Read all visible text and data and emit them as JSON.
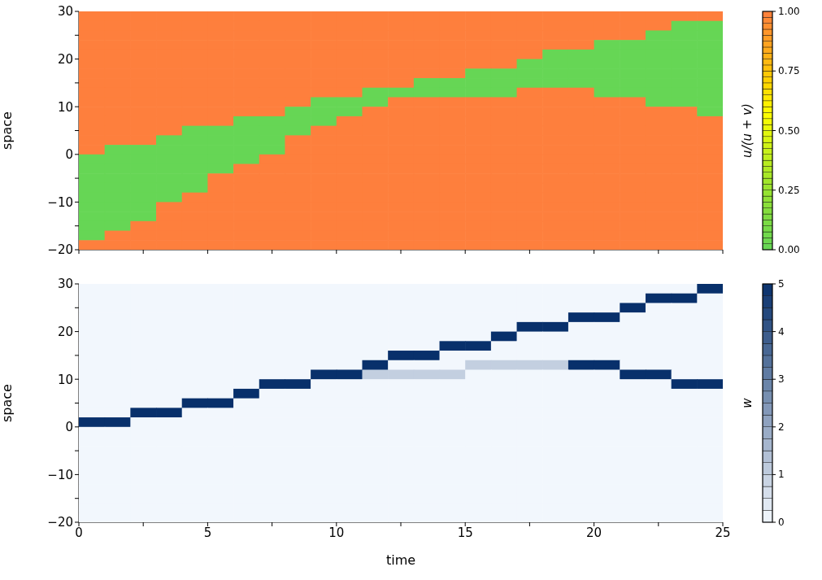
{
  "chart_data": [
    {
      "type": "heatmap",
      "ylabel": "space",
      "clabel": "u/(u + v)",
      "tick_labels": "y",
      "x": [
        0.5,
        1.5,
        2.5,
        3.5,
        4.5,
        5.5,
        6.5,
        7.5,
        8.5,
        9.5,
        10.5,
        11.5,
        12.5,
        13.5,
        14.5,
        15.5,
        16.5,
        17.5,
        18.5,
        19.5,
        20.5,
        21.5,
        22.5,
        23.5,
        24.5
      ],
      "y": [
        29,
        27,
        25,
        23,
        21,
        19,
        17,
        15,
        13,
        11,
        9,
        7,
        5,
        3,
        1,
        -1,
        -3,
        -5,
        -7,
        -9,
        -11,
        -13,
        -15,
        -17,
        -19
      ],
      "xlim": [
        0,
        25
      ],
      "xticks": [
        0,
        {
          "value": 2.5,
          "label": null
        },
        5,
        {
          "value": 7.5,
          "label": null
        },
        10,
        {
          "value": 12.5,
          "label": null
        },
        15,
        {
          "value": 17.5,
          "label": null
        },
        20,
        {
          "value": 22.5,
          "label": null
        },
        25
      ],
      "ylim": [
        -20,
        30
      ],
      "yticks": [
        {
          "value": -20,
          "label": "−20"
        },
        {
          "value": -15,
          "label": null
        },
        {
          "value": -10,
          "label": "−10"
        },
        {
          "value": -5,
          "label": null
        },
        0,
        {
          "value": 5,
          "label": null
        },
        10,
        {
          "value": 15,
          "label": null
        },
        20,
        {
          "value": 25,
          "label": null
        },
        30
      ],
      "clim": [
        0,
        1
      ],
      "cticks": [
        {
          "value": 0,
          "label": "0.00"
        },
        {
          "value": 0.25,
          "label": "0.25"
        },
        {
          "value": 0.5,
          "label": "0.50"
        },
        {
          "value": 0.75,
          "label": "0.75"
        },
        {
          "value": 1,
          "label": "1.00"
        }
      ],
      "cells": [
        [
          1,
          1,
          1,
          1,
          1,
          1,
          1,
          1,
          1,
          1,
          1,
          1,
          1,
          1,
          1,
          1,
          1,
          1,
          1,
          1,
          1,
          1,
          1,
          1,
          1
        ],
        [
          1,
          1,
          1,
          1,
          1,
          1,
          1,
          1,
          1,
          1,
          1,
          1,
          1,
          1,
          1,
          1,
          1,
          1,
          1,
          1,
          1,
          1,
          1,
          0,
          0
        ],
        [
          1,
          1,
          1,
          1,
          1,
          1,
          1,
          1,
          1,
          1,
          1,
          1,
          1,
          1,
          1,
          1,
          1,
          1,
          1,
          1,
          1,
          1,
          0,
          0,
          0
        ],
        [
          1,
          1,
          1,
          1,
          1,
          1,
          1,
          1,
          1,
          1,
          1,
          1,
          1,
          1,
          1,
          1,
          1,
          1,
          1,
          1,
          0,
          0,
          0,
          0,
          0
        ],
        [
          1,
          1,
          1,
          1,
          1,
          1,
          1,
          1,
          1,
          1,
          1,
          1,
          1,
          1,
          1,
          1,
          1,
          1,
          0,
          0,
          0,
          0,
          0,
          0,
          0
        ],
        [
          1,
          1,
          1,
          1,
          1,
          1,
          1,
          1,
          1,
          1,
          1,
          1,
          1,
          1,
          1,
          1,
          1,
          0,
          0,
          0,
          0,
          0,
          0,
          0,
          0
        ],
        [
          1,
          1,
          1,
          1,
          1,
          1,
          1,
          1,
          1,
          1,
          1,
          1,
          1,
          1,
          1,
          0,
          0,
          0,
          0,
          0,
          0,
          0,
          0,
          0,
          0
        ],
        [
          1,
          1,
          1,
          1,
          1,
          1,
          1,
          1,
          1,
          1,
          1,
          1,
          1,
          0,
          0,
          0,
          0,
          0,
          0,
          0,
          0,
          0,
          0,
          0,
          0
        ],
        [
          1,
          1,
          1,
          1,
          1,
          1,
          1,
          1,
          1,
          1,
          1,
          0,
          0,
          0,
          0,
          0,
          0,
          1,
          1,
          1,
          0,
          0,
          0,
          0,
          0
        ],
        [
          1,
          1,
          1,
          1,
          1,
          1,
          1,
          1,
          1,
          0,
          0,
          0,
          1,
          1,
          1,
          1,
          1,
          1,
          1,
          1,
          1,
          1,
          0,
          0,
          0
        ],
        [
          1,
          1,
          1,
          1,
          1,
          1,
          1,
          1,
          0,
          0,
          0,
          1,
          1,
          1,
          1,
          1,
          1,
          1,
          1,
          1,
          1,
          1,
          1,
          1,
          0
        ],
        [
          1,
          1,
          1,
          1,
          1,
          1,
          0,
          0,
          0,
          0,
          1,
          1,
          1,
          1,
          1,
          1,
          1,
          1,
          1,
          1,
          1,
          1,
          1,
          1,
          1
        ],
        [
          1,
          1,
          1,
          1,
          0,
          0,
          0,
          0,
          0,
          1,
          1,
          1,
          1,
          1,
          1,
          1,
          1,
          1,
          1,
          1,
          1,
          1,
          1,
          1,
          1
        ],
        [
          1,
          1,
          1,
          0,
          0,
          0,
          0,
          0,
          1,
          1,
          1,
          1,
          1,
          1,
          1,
          1,
          1,
          1,
          1,
          1,
          1,
          1,
          1,
          1,
          1
        ],
        [
          1,
          0,
          0,
          0,
          0,
          0,
          0,
          0,
          1,
          1,
          1,
          1,
          1,
          1,
          1,
          1,
          1,
          1,
          1,
          1,
          1,
          1,
          1,
          1,
          1
        ],
        [
          0,
          0,
          0,
          0,
          0,
          0,
          0,
          1,
          1,
          1,
          1,
          1,
          1,
          1,
          1,
          1,
          1,
          1,
          1,
          1,
          1,
          1,
          1,
          1,
          1
        ],
        [
          0,
          0,
          0,
          0,
          0,
          0,
          1,
          1,
          1,
          1,
          1,
          1,
          1,
          1,
          1,
          1,
          1,
          1,
          1,
          1,
          1,
          1,
          1,
          1,
          1
        ],
        [
          0,
          0,
          0,
          0,
          0,
          1,
          1,
          1,
          1,
          1,
          1,
          1,
          1,
          1,
          1,
          1,
          1,
          1,
          1,
          1,
          1,
          1,
          1,
          1,
          1
        ],
        [
          0,
          0,
          0,
          0,
          0,
          1,
          1,
          1,
          1,
          1,
          1,
          1,
          1,
          1,
          1,
          1,
          1,
          1,
          1,
          1,
          1,
          1,
          1,
          1,
          1
        ],
        [
          0,
          0,
          0,
          0,
          1,
          1,
          1,
          1,
          1,
          1,
          1,
          1,
          1,
          1,
          1,
          1,
          1,
          1,
          1,
          1,
          1,
          1,
          1,
          1,
          1
        ],
        [
          0,
          0,
          0,
          1,
          1,
          1,
          1,
          1,
          1,
          1,
          1,
          1,
          1,
          1,
          1,
          1,
          1,
          1,
          1,
          1,
          1,
          1,
          1,
          1,
          1
        ],
        [
          0,
          0,
          0,
          1,
          1,
          1,
          1,
          1,
          1,
          1,
          1,
          1,
          1,
          1,
          1,
          1,
          1,
          1,
          1,
          1,
          1,
          1,
          1,
          1,
          1
        ],
        [
          0,
          0,
          1,
          1,
          1,
          1,
          1,
          1,
          1,
          1,
          1,
          1,
          1,
          1,
          1,
          1,
          1,
          1,
          1,
          1,
          1,
          1,
          1,
          1,
          1
        ],
        [
          0,
          1,
          1,
          1,
          1,
          1,
          1,
          1,
          1,
          1,
          1,
          1,
          1,
          1,
          1,
          1,
          1,
          1,
          1,
          1,
          1,
          1,
          1,
          1,
          1
        ],
        [
          1,
          1,
          1,
          1,
          1,
          1,
          1,
          1,
          1,
          1,
          1,
          1,
          1,
          1,
          1,
          1,
          1,
          1,
          1,
          1,
          1,
          1,
          1,
          1,
          1
        ]
      ]
    },
    {
      "type": "heatmap",
      "xlabel": "time",
      "ylabel": "space",
      "clabel": "w",
      "x": [
        0.5,
        1.5,
        2.5,
        3.5,
        4.5,
        5.5,
        6.5,
        7.5,
        8.5,
        9.5,
        10.5,
        11.5,
        12.5,
        13.5,
        14.5,
        15.5,
        16.5,
        17.5,
        18.5,
        19.5,
        20.5,
        21.5,
        22.5,
        23.5,
        24.5
      ],
      "y": [
        29,
        27,
        25,
        23,
        21,
        19,
        17,
        15,
        13,
        11,
        9,
        7,
        5,
        3,
        1,
        -1,
        -3,
        -5,
        -7,
        -9,
        -11,
        -13,
        -15,
        -17,
        -19
      ],
      "xlim": [
        0,
        25
      ],
      "xticks": [
        0,
        {
          "value": 2.5,
          "label": null
        },
        5,
        {
          "value": 7.5,
          "label": null
        },
        10,
        {
          "value": 12.5,
          "label": null
        },
        15,
        {
          "value": 17.5,
          "label": null
        },
        20,
        {
          "value": 22.5,
          "label": null
        },
        25
      ],
      "ylim": [
        -20,
        30
      ],
      "yticks": [
        {
          "value": -20,
          "label": "−20"
        },
        {
          "value": -15,
          "label": null
        },
        {
          "value": -10,
          "label": "−10"
        },
        {
          "value": -5,
          "label": null
        },
        0,
        {
          "value": 5,
          "label": null
        },
        10,
        {
          "value": 15,
          "label": null
        },
        20,
        {
          "value": 25,
          "label": null
        },
        30
      ],
      "clim": [
        0,
        5
      ],
      "cticks": [
        0,
        1,
        2,
        3,
        4,
        5
      ],
      "cells": [
        [
          0,
          0,
          0,
          0,
          0,
          0,
          0,
          0,
          0,
          0,
          0,
          0,
          0,
          0,
          0,
          0,
          0,
          0,
          0,
          0,
          0,
          0,
          0,
          0,
          5
        ],
        [
          0,
          0,
          0,
          0,
          0,
          0,
          0,
          0,
          0,
          0,
          0,
          0,
          0,
          0,
          0,
          0,
          0,
          0,
          0,
          0,
          0,
          0,
          5,
          5,
          0
        ],
        [
          0,
          0,
          0,
          0,
          0,
          0,
          0,
          0,
          0,
          0,
          0,
          0,
          0,
          0,
          0,
          0,
          0,
          0,
          0,
          0,
          0,
          5,
          0,
          0,
          0
        ],
        [
          0,
          0,
          0,
          0,
          0,
          0,
          0,
          0,
          0,
          0,
          0,
          0,
          0,
          0,
          0,
          0,
          0,
          0,
          0,
          5,
          5,
          0,
          0,
          0,
          0
        ],
        [
          0,
          0,
          0,
          0,
          0,
          0,
          0,
          0,
          0,
          0,
          0,
          0,
          0,
          0,
          0,
          0,
          0,
          5,
          5,
          0,
          0,
          0,
          0,
          0,
          0
        ],
        [
          0,
          0,
          0,
          0,
          0,
          0,
          0,
          0,
          0,
          0,
          0,
          0,
          0,
          0,
          0,
          0,
          5,
          0,
          0,
          0,
          0,
          0,
          0,
          0,
          0
        ],
        [
          0,
          0,
          0,
          0,
          0,
          0,
          0,
          0,
          0,
          0,
          0,
          0,
          0,
          0,
          5,
          5,
          0,
          0,
          0,
          0,
          0,
          0,
          0,
          0,
          0
        ],
        [
          0,
          0,
          0,
          0,
          0,
          0,
          0,
          0,
          0,
          0,
          0,
          0,
          5,
          5,
          0,
          0,
          0,
          0,
          0,
          0,
          0,
          0,
          0,
          0,
          0
        ],
        [
          0,
          0,
          0,
          0,
          0,
          0,
          0,
          0,
          0,
          0,
          0,
          5,
          0,
          0,
          0,
          1,
          1,
          1,
          1,
          5,
          5,
          0,
          0,
          0,
          0
        ],
        [
          0,
          0,
          0,
          0,
          0,
          0,
          0,
          0,
          0,
          5,
          5,
          1,
          1,
          1,
          1,
          0,
          0,
          0,
          0,
          0,
          0,
          5,
          5,
          0,
          0
        ],
        [
          0,
          0,
          0,
          0,
          0,
          0,
          0,
          5,
          5,
          0,
          0,
          0,
          0,
          0,
          0,
          0,
          0,
          0,
          0,
          0,
          0,
          0,
          0,
          5,
          5
        ],
        [
          0,
          0,
          0,
          0,
          0,
          0,
          5,
          0,
          0,
          0,
          0,
          0,
          0,
          0,
          0,
          0,
          0,
          0,
          0,
          0,
          0,
          0,
          0,
          0,
          0
        ],
        [
          0,
          0,
          0,
          0,
          5,
          5,
          0,
          0,
          0,
          0,
          0,
          0,
          0,
          0,
          0,
          0,
          0,
          0,
          0,
          0,
          0,
          0,
          0,
          0,
          0
        ],
        [
          0,
          0,
          5,
          5,
          0,
          0,
          0,
          0,
          0,
          0,
          0,
          0,
          0,
          0,
          0,
          0,
          0,
          0,
          0,
          0,
          0,
          0,
          0,
          0,
          0
        ],
        [
          5,
          5,
          0,
          0,
          0,
          0,
          0,
          0,
          0,
          0,
          0,
          0,
          0,
          0,
          0,
          0,
          0,
          0,
          0,
          0,
          0,
          0,
          0,
          0,
          0
        ],
        [
          0,
          0,
          0,
          0,
          0,
          0,
          0,
          0,
          0,
          0,
          0,
          0,
          0,
          0,
          0,
          0,
          0,
          0,
          0,
          0,
          0,
          0,
          0,
          0,
          0
        ],
        [
          0,
          0,
          0,
          0,
          0,
          0,
          0,
          0,
          0,
          0,
          0,
          0,
          0,
          0,
          0,
          0,
          0,
          0,
          0,
          0,
          0,
          0,
          0,
          0,
          0
        ],
        [
          0,
          0,
          0,
          0,
          0,
          0,
          0,
          0,
          0,
          0,
          0,
          0,
          0,
          0,
          0,
          0,
          0,
          0,
          0,
          0,
          0,
          0,
          0,
          0,
          0
        ],
        [
          0,
          0,
          0,
          0,
          0,
          0,
          0,
          0,
          0,
          0,
          0,
          0,
          0,
          0,
          0,
          0,
          0,
          0,
          0,
          0,
          0,
          0,
          0,
          0,
          0
        ],
        [
          0,
          0,
          0,
          0,
          0,
          0,
          0,
          0,
          0,
          0,
          0,
          0,
          0,
          0,
          0,
          0,
          0,
          0,
          0,
          0,
          0,
          0,
          0,
          0,
          0
        ],
        [
          0,
          0,
          0,
          0,
          0,
          0,
          0,
          0,
          0,
          0,
          0,
          0,
          0,
          0,
          0,
          0,
          0,
          0,
          0,
          0,
          0,
          0,
          0,
          0,
          0
        ],
        [
          0,
          0,
          0,
          0,
          0,
          0,
          0,
          0,
          0,
          0,
          0,
          0,
          0,
          0,
          0,
          0,
          0,
          0,
          0,
          0,
          0,
          0,
          0,
          0,
          0
        ],
        [
          0,
          0,
          0,
          0,
          0,
          0,
          0,
          0,
          0,
          0,
          0,
          0,
          0,
          0,
          0,
          0,
          0,
          0,
          0,
          0,
          0,
          0,
          0,
          0,
          0
        ],
        [
          0,
          0,
          0,
          0,
          0,
          0,
          0,
          0,
          0,
          0,
          0,
          0,
          0,
          0,
          0,
          0,
          0,
          0,
          0,
          0,
          0,
          0,
          0,
          0,
          0
        ],
        [
          0,
          0,
          0,
          0,
          0,
          0,
          0,
          0,
          0,
          0,
          0,
          0,
          0,
          0,
          0,
          0,
          0,
          0,
          0,
          0,
          0,
          0,
          0,
          0,
          0
        ]
      ]
    }
  ]
}
